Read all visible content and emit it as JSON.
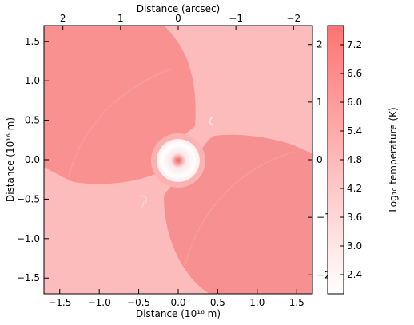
{
  "chart_data": {
    "type": "heatmap",
    "title": "",
    "xlabel": "Distance (10¹⁶ m)",
    "ylabel": "Distance (10¹⁶ m)",
    "x2label": "Distance (arcsec)",
    "xlim": [
      -1.7,
      1.7
    ],
    "ylim": [
      -1.7,
      1.7
    ],
    "x_ticks": [
      -1.5,
      -1.0,
      -0.5,
      0.0,
      0.5,
      1.0,
      1.5
    ],
    "x_tick_labels": [
      "−1.5",
      "−1.0",
      "−0.5",
      "0.0",
      "0.5",
      "1.0",
      "1.5"
    ],
    "y_ticks": [
      1.5,
      1.0,
      0.5,
      0.0,
      -0.5,
      -1.0,
      -1.5
    ],
    "y_tick_labels": [
      "1.5",
      "1.0",
      "0.5",
      "0.0",
      "−0.5",
      "−1.0",
      "−1.5"
    ],
    "arcsec_scale": 0.73,
    "top_ticks": [
      2,
      1,
      0,
      -1,
      -2
    ],
    "top_tick_labels": [
      "2",
      "1",
      "0",
      "−1",
      "−2"
    ],
    "right_ticks": [
      2,
      1,
      0,
      -1,
      -2
    ],
    "right_tick_labels": [
      "2",
      "1",
      "0",
      "−1",
      "−2"
    ],
    "colorbar": {
      "label": "Log₁₀ temperature (K)",
      "range": [
        2.0,
        7.6
      ],
      "ticks": [
        7.2,
        6.6,
        6.0,
        5.4,
        4.8,
        4.2,
        3.6,
        3.0,
        2.4
      ],
      "tick_labels": [
        "7.2",
        "6.6",
        "6.0",
        "5.4",
        "4.8",
        "4.2",
        "3.6",
        "3.0",
        "2.4"
      ],
      "color_low": "#ffffff",
      "color_high": "#ff7373"
    },
    "colors": {
      "background_region": "#fdbcbc",
      "hot_lobe": "#f99191",
      "hot_lobe_inner": "#f79090",
      "ring": "#fbb2b2",
      "core_center": "#f06060"
    }
  }
}
